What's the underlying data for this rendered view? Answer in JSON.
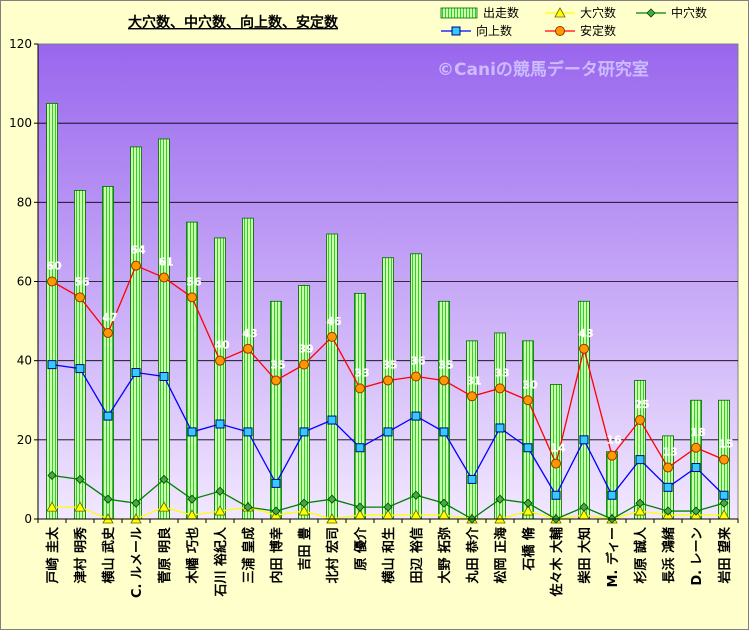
{
  "chart_data": {
    "type": "bar",
    "title": "大穴数、中穴数、向上数、安定数",
    "watermark": "©Caniの競馬データ研究室",
    "ylim": [
      0,
      120
    ],
    "yticks": [
      0,
      20,
      40,
      60,
      80,
      100,
      120
    ],
    "grid": true,
    "legend_position": "top-right",
    "colors": {
      "plot_top": "#9966ee",
      "plot_bottom": "#f2e8ff",
      "bar_fill": "#ccffaa",
      "bar_stripe": "#33cc33",
      "bar_edge": "#006600",
      "ana": "#ffff00",
      "chu": "#008000",
      "kojo": "#0000ff",
      "antei": "#ff0000",
      "watermark": "#ccbbff"
    },
    "categories": [
      "戸崎 圭太",
      "津村 明秀",
      "横山 武史",
      "C. ルメール",
      "菅原 明良",
      "木幡 巧也",
      "石川 裕紀人",
      "三浦 皇成",
      "内田 博幸",
      "吉田 豊",
      "北村 宏司",
      "原 優介",
      "横山 和生",
      "田辺 裕信",
      "大野 拓弥",
      "丸田 恭介",
      "松岡 正海",
      "石橋 脩",
      "佐々木 大輔",
      "柴田 大知",
      "M. ディー",
      "杉原 誠人",
      "長浜 鴻緒",
      "D. レーン",
      "岩田 望来"
    ],
    "series": [
      {
        "name": "出走数",
        "kind": "bar",
        "values": [
          105,
          83,
          84,
          94,
          96,
          75,
          71,
          76,
          55,
          59,
          72,
          57,
          66,
          67,
          55,
          45,
          47,
          45,
          34,
          55,
          17,
          35,
          21,
          30,
          30
        ]
      },
      {
        "name": "大穴数",
        "kind": "line",
        "marker": "triangle",
        "values": [
          3,
          3,
          0,
          0,
          3,
          1,
          2,
          3,
          1,
          2,
          0,
          1,
          1,
          1,
          1,
          0,
          0,
          2,
          0,
          1,
          0,
          2,
          1,
          1,
          1
        ]
      },
      {
        "name": "中穴数",
        "kind": "line",
        "marker": "diamond",
        "values": [
          11,
          10,
          5,
          4,
          10,
          5,
          7,
          3,
          2,
          4,
          5,
          3,
          3,
          6,
          4,
          0,
          5,
          4,
          0,
          3,
          0,
          4,
          2,
          2,
          4
        ]
      },
      {
        "name": "向上数",
        "kind": "line",
        "marker": "square",
        "values": [
          39,
          38,
          26,
          37,
          36,
          22,
          24,
          22,
          9,
          22,
          25,
          18,
          22,
          26,
          22,
          10,
          23,
          18,
          6,
          20,
          6,
          15,
          8,
          13,
          6
        ]
      },
      {
        "name": "安定数",
        "kind": "line",
        "marker": "circle",
        "labeled": true,
        "values": [
          60,
          56,
          47,
          64,
          61,
          56,
          40,
          43,
          35,
          39,
          46,
          33,
          35,
          36,
          35,
          31,
          33,
          30,
          14,
          43,
          16,
          25,
          13,
          18,
          15
        ]
      }
    ]
  }
}
